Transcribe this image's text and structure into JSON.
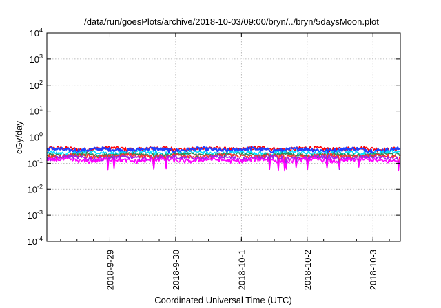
{
  "chart_data": {
    "type": "line",
    "title": "/data/run/goesPlots/archive/2018-10-03/09:00/bryn/../bryn/5daysMoon.plot",
    "xlabel": "Coordinated Universal Time (UTC)",
    "ylabel": "cGy/day",
    "yscale": "log",
    "ylim": [
      0.0001,
      10000
    ],
    "y_ticks": [
      {
        "base": "10",
        "exp": "-4"
      },
      {
        "base": "10",
        "exp": "-3"
      },
      {
        "base": "10",
        "exp": "-2"
      },
      {
        "base": "10",
        "exp": "-1"
      },
      {
        "base": "10",
        "exp": "0"
      },
      {
        "base": "10",
        "exp": "1"
      },
      {
        "base": "10",
        "exp": "2"
      },
      {
        "base": "10",
        "exp": "3"
      },
      {
        "base": "10",
        "exp": "4"
      }
    ],
    "xlim": [
      "2018-09-28 01:00",
      "2018-10-03 10:00"
    ],
    "x_ticks": [
      {
        "label": "2018-9-29",
        "date": "2018-09-29 00:00"
      },
      {
        "label": "2018-9-30",
        "date": "2018-09-30 00:00"
      },
      {
        "label": "2018-10-1",
        "date": "2018-10-01 00:00"
      },
      {
        "label": "2018-10-2",
        "date": "2018-10-02 00:00"
      },
      {
        "label": "2018-10-3",
        "date": "2018-10-03 00:00"
      }
    ],
    "grid": true,
    "legend": "none",
    "series": [
      {
        "color": "#ff0000",
        "level": 0.36
      },
      {
        "color": "#1f3fff",
        "level": 0.33
      },
      {
        "color": "#00e0ff",
        "level": 0.25
      },
      {
        "color": "#2e8b57",
        "level": 0.21
      },
      {
        "color": "#ff3030",
        "level": 0.19
      },
      {
        "color": "#a020f0",
        "level": 0.16
      },
      {
        "color": "#ff00ff",
        "level": 0.13
      }
    ]
  }
}
